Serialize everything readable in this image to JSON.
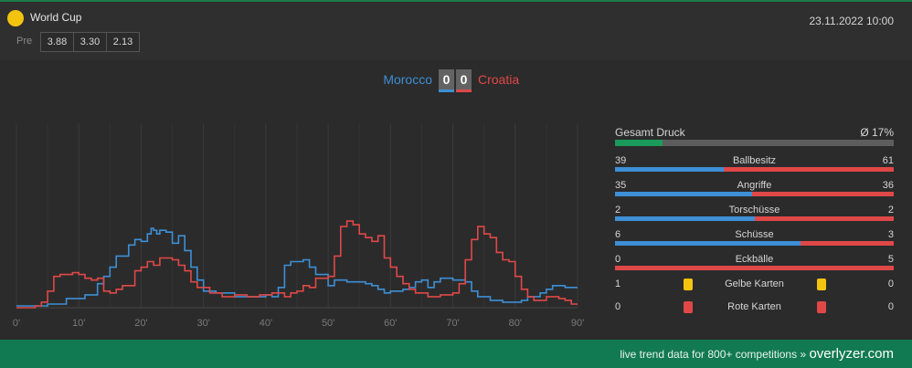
{
  "header": {
    "competition": "World Cup",
    "date": "23.11.2022 10:00",
    "pre_label": "Pre",
    "odds": [
      "3.88",
      "3.30",
      "2.13"
    ],
    "icon": "competition-ball-icon"
  },
  "match": {
    "home": "Morocco",
    "away": "Croatia",
    "home_score": "0",
    "away_score": "0"
  },
  "colors": {
    "home": "#3d8fd6",
    "away": "#e04848",
    "accent": "#1a9b5b",
    "yellow_card": "#f2c40f",
    "red_card": "#e04848"
  },
  "stats": {
    "gesamt_druck": {
      "label": "Gesamt Druck",
      "value": "Ø 17%",
      "percent": 17
    },
    "rows": [
      {
        "label": "Ballbesitz",
        "home": "39",
        "away": "61"
      },
      {
        "label": "Angriffe",
        "home": "35",
        "away": "36"
      },
      {
        "label": "Torschüsse",
        "home": "2",
        "away": "2"
      },
      {
        "label": "Schüsse",
        "home": "6",
        "away": "3"
      },
      {
        "label": "Eckbälle",
        "home": "0",
        "away": "5"
      }
    ],
    "cards": [
      {
        "label": "Gelbe Karten",
        "home": "1",
        "away": "0",
        "type": "yellow"
      },
      {
        "label": "Rote Karten",
        "home": "0",
        "away": "0",
        "type": "red"
      }
    ]
  },
  "chart_data": {
    "type": "line",
    "x_ticks": [
      "0'",
      "10'",
      "20'",
      "30'",
      "40'",
      "50'",
      "60'",
      "70'",
      "80'",
      "90'"
    ],
    "xlim": [
      0,
      90
    ],
    "ylim": [
      0,
      100
    ],
    "series": [
      {
        "color": "#3d8fd6",
        "points": [
          [
            0,
            1
          ],
          [
            3,
            1
          ],
          [
            5,
            2
          ],
          [
            8,
            5
          ],
          [
            11,
            7
          ],
          [
            13,
            13
          ],
          [
            14,
            17
          ],
          [
            15,
            22
          ],
          [
            16,
            28
          ],
          [
            18,
            34
          ],
          [
            19,
            37
          ],
          [
            20,
            36
          ],
          [
            21,
            40
          ],
          [
            21.6,
            43
          ],
          [
            22,
            42
          ],
          [
            22.5,
            40
          ],
          [
            23,
            42
          ],
          [
            24,
            41
          ],
          [
            25,
            35
          ],
          [
            26,
            39
          ],
          [
            27,
            31
          ],
          [
            28,
            22
          ],
          [
            29,
            15
          ],
          [
            30,
            9
          ],
          [
            32,
            8
          ],
          [
            35,
            6
          ],
          [
            38,
            6
          ],
          [
            40,
            7
          ],
          [
            41,
            6
          ],
          [
            42,
            11
          ],
          [
            43,
            23
          ],
          [
            44,
            25
          ],
          [
            46,
            26
          ],
          [
            47,
            22
          ],
          [
            48,
            18
          ],
          [
            50,
            12
          ],
          [
            51,
            15
          ],
          [
            53,
            14
          ],
          [
            56,
            13
          ],
          [
            57,
            12
          ],
          [
            58,
            10
          ],
          [
            59,
            8
          ],
          [
            60,
            9
          ],
          [
            62,
            10
          ],
          [
            63,
            11
          ],
          [
            64,
            14
          ],
          [
            65,
            15
          ],
          [
            66,
            11
          ],
          [
            67,
            14
          ],
          [
            68,
            16
          ],
          [
            70,
            15
          ],
          [
            72,
            14
          ],
          [
            73,
            9
          ],
          [
            74,
            6
          ],
          [
            76,
            4
          ],
          [
            78,
            3
          ],
          [
            80,
            3
          ],
          [
            81,
            4
          ],
          [
            82,
            6
          ],
          [
            84,
            8
          ],
          [
            85,
            10
          ],
          [
            86,
            12
          ],
          [
            88,
            11
          ],
          [
            90,
            11
          ]
        ]
      },
      {
        "color": "#e04848",
        "points": [
          [
            0,
            0
          ],
          [
            3,
            1
          ],
          [
            4,
            3
          ],
          [
            5,
            9
          ],
          [
            6,
            17
          ],
          [
            7,
            18
          ],
          [
            9,
            19
          ],
          [
            10,
            18
          ],
          [
            11,
            16
          ],
          [
            12,
            15
          ],
          [
            13,
            16
          ],
          [
            14,
            9
          ],
          [
            15,
            8
          ],
          [
            16,
            10
          ],
          [
            17,
            12
          ],
          [
            19,
            20
          ],
          [
            20,
            22
          ],
          [
            21,
            25
          ],
          [
            22,
            23
          ],
          [
            23,
            27
          ],
          [
            25,
            26
          ],
          [
            26,
            23
          ],
          [
            27,
            20
          ],
          [
            28,
            14
          ],
          [
            29,
            11
          ],
          [
            31,
            8
          ],
          [
            33,
            6
          ],
          [
            35,
            7
          ],
          [
            37,
            6
          ],
          [
            39,
            7
          ],
          [
            41,
            8
          ],
          [
            43,
            6
          ],
          [
            44,
            8
          ],
          [
            45,
            9
          ],
          [
            46,
            12
          ],
          [
            47,
            11
          ],
          [
            48,
            16
          ],
          [
            50,
            17
          ],
          [
            51,
            28
          ],
          [
            52,
            44
          ],
          [
            53,
            47
          ],
          [
            54,
            45
          ],
          [
            55,
            40
          ],
          [
            56,
            38
          ],
          [
            57,
            36
          ],
          [
            58,
            39
          ],
          [
            59,
            27
          ],
          [
            60,
            22
          ],
          [
            61,
            17
          ],
          [
            62,
            13
          ],
          [
            63,
            10
          ],
          [
            64,
            8
          ],
          [
            66,
            6
          ],
          [
            68,
            7
          ],
          [
            70,
            8
          ],
          [
            71,
            13
          ],
          [
            72,
            26
          ],
          [
            73,
            37
          ],
          [
            74,
            44
          ],
          [
            75,
            40
          ],
          [
            76,
            38
          ],
          [
            77,
            30
          ],
          [
            78,
            26
          ],
          [
            79,
            25
          ],
          [
            80,
            17
          ],
          [
            81,
            10
          ],
          [
            82,
            6
          ],
          [
            83,
            4
          ],
          [
            84,
            4
          ],
          [
            85,
            6
          ],
          [
            87,
            5
          ],
          [
            88,
            4
          ],
          [
            89,
            2
          ],
          [
            90,
            2
          ]
        ]
      }
    ]
  },
  "footer": {
    "text": "live trend data for 800+ competitions »",
    "brand": "overlyzer.com"
  }
}
